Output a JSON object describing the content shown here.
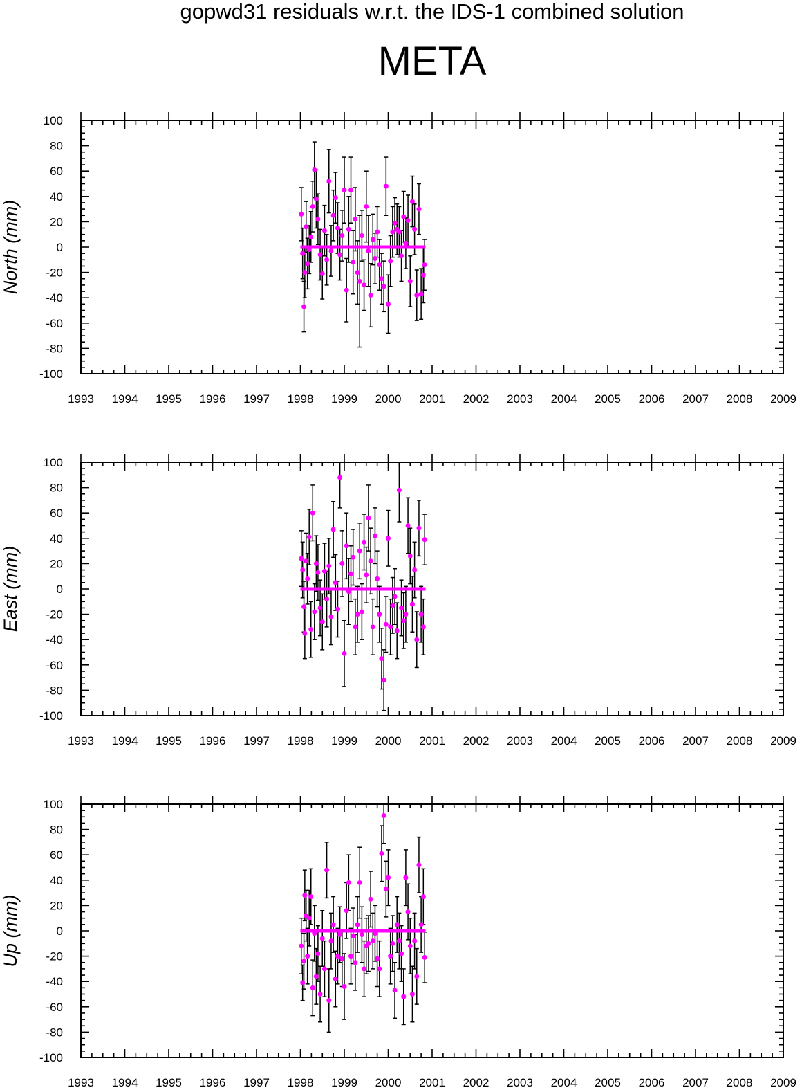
{
  "title": "gopwd31 residuals w.r.t. the IDS-1 combined solution",
  "subtitle": "META",
  "colors": {
    "marker": "#ff00ff",
    "errorbar": "#000000",
    "zero_line": "#ff00ff",
    "axis": "#000000"
  },
  "chart_data": [
    {
      "type": "scatter",
      "ylabel": "North (mm)",
      "xlim": [
        1993,
        2009
      ],
      "ylim": [
        -100,
        100
      ],
      "x_ticks": [
        "1993",
        "1994",
        "1995",
        "1996",
        "1997",
        "1998",
        "1999",
        "2000",
        "2001",
        "2002",
        "2003",
        "2004",
        "2005",
        "2006",
        "2007",
        "2008",
        "2009"
      ],
      "y_ticks": [
        "100",
        "80",
        "60",
        "40",
        "20",
        "0",
        "-20",
        "-40",
        "-60",
        "-80",
        "-100"
      ],
      "zero_line": {
        "x": [
          1998.0,
          2000.85
        ],
        "y": 0
      },
      "series": [
        {
          "x": [
            1998.02,
            1998.05,
            1998.08,
            1998.1,
            1998.13,
            1998.16,
            1998.2,
            1998.24,
            1998.28,
            1998.32,
            1998.36,
            1998.4,
            1998.45,
            1998.5,
            1998.55,
            1998.6,
            1998.65,
            1998.7,
            1998.75,
            1998.8,
            1998.85,
            1998.9,
            1998.95,
            1999.0,
            1999.05,
            1999.1,
            1999.15,
            1999.2,
            1999.25,
            1999.3,
            1999.35,
            1999.4,
            1999.45,
            1999.5,
            1999.55,
            1999.6,
            1999.65,
            1999.7,
            1999.75,
            1999.8,
            1999.85,
            1999.9,
            1999.95,
            2000.0,
            2000.05,
            2000.1,
            2000.15,
            2000.2,
            2000.25,
            2000.3,
            2000.35,
            2000.4,
            2000.45,
            2000.5,
            2000.55,
            2000.6,
            2000.65,
            2000.7,
            2000.75,
            2000.8,
            2000.83
          ],
          "y": [
            26,
            -5,
            -47,
            -20,
            16,
            -13,
            -2,
            8,
            32,
            61,
            38,
            22,
            -6,
            -21,
            13,
            -10,
            52,
            -3,
            25,
            39,
            15,
            -6,
            9,
            45,
            -34,
            14,
            45,
            -12,
            22,
            -20,
            -27,
            9,
            -30,
            32,
            -3,
            -38,
            6,
            -9,
            12,
            -14,
            -25,
            -31,
            48,
            -45,
            -11,
            12,
            19,
            14,
            12,
            -7,
            24,
            3,
            21,
            -27,
            36,
            14,
            -38,
            30,
            -37,
            -22,
            -14
          ],
          "err": [
            21,
            20,
            20,
            20,
            20,
            20,
            19,
            20,
            20,
            22,
            23,
            20,
            20,
            20,
            20,
            20,
            25,
            20,
            20,
            20,
            20,
            20,
            20,
            26,
            25,
            26,
            26,
            25,
            25,
            25,
            52,
            20,
            20,
            28,
            28,
            25,
            20,
            20,
            20,
            20,
            20,
            20,
            23,
            23,
            20,
            20,
            20,
            20,
            20,
            20,
            20,
            20,
            20,
            20,
            20,
            20,
            20,
            20,
            20,
            22,
            20
          ]
        }
      ]
    },
    {
      "type": "scatter",
      "ylabel": "East (mm)",
      "xlim": [
        1993,
        2009
      ],
      "ylim": [
        -100,
        100
      ],
      "x_ticks": [
        "1993",
        "1994",
        "1995",
        "1996",
        "1997",
        "1998",
        "1999",
        "2000",
        "2001",
        "2002",
        "2003",
        "2004",
        "2005",
        "2006",
        "2007",
        "2008",
        "2009"
      ],
      "y_ticks": [
        "100",
        "80",
        "60",
        "40",
        "20",
        "0",
        "-20",
        "-40",
        "-60",
        "-80",
        "-100"
      ],
      "zero_line": {
        "x": [
          1998.0,
          2000.85
        ],
        "y": 0
      },
      "series": [
        {
          "x": [
            1998.02,
            1998.05,
            1998.08,
            1998.1,
            1998.13,
            1998.16,
            1998.2,
            1998.24,
            1998.28,
            1998.32,
            1998.36,
            1998.4,
            1998.45,
            1998.5,
            1998.55,
            1998.6,
            1998.65,
            1998.7,
            1998.75,
            1998.8,
            1998.85,
            1998.9,
            1998.95,
            1999.0,
            1999.05,
            1999.1,
            1999.15,
            1999.2,
            1999.25,
            1999.3,
            1999.35,
            1999.4,
            1999.45,
            1999.5,
            1999.55,
            1999.6,
            1999.65,
            1999.7,
            1999.75,
            1999.8,
            1999.85,
            1999.9,
            1999.95,
            2000.0,
            2000.05,
            2000.1,
            2000.15,
            2000.2,
            2000.25,
            2000.3,
            2000.35,
            2000.4,
            2000.45,
            2000.5,
            2000.55,
            2000.6,
            2000.65,
            2000.7,
            2000.75,
            2000.8,
            2000.83
          ],
          "y": [
            24,
            15,
            -14,
            -35,
            22,
            8,
            41,
            -32,
            60,
            -18,
            20,
            13,
            -15,
            -26,
            14,
            -8,
            18,
            -22,
            47,
            5,
            -16,
            88,
            20,
            -51,
            34,
            -2,
            12,
            25,
            -30,
            -20,
            30,
            -18,
            37,
            11,
            56,
            22,
            -30,
            42,
            8,
            -20,
            -55,
            -72,
            -28,
            40,
            -30,
            -13,
            -6,
            -33,
            78,
            -15,
            -25,
            -20,
            50,
            26,
            -12,
            15,
            -40,
            48,
            -20,
            -30,
            39
          ],
          "err": [
            22,
            22,
            20,
            20,
            22,
            20,
            22,
            22,
            22,
            22,
            22,
            22,
            22,
            22,
            22,
            22,
            22,
            22,
            22,
            22,
            22,
            24,
            26,
            26,
            26,
            26,
            22,
            22,
            22,
            22,
            22,
            22,
            22,
            22,
            26,
            26,
            22,
            22,
            22,
            22,
            24,
            24,
            22,
            22,
            22,
            22,
            22,
            22,
            25,
            22,
            22,
            22,
            22,
            22,
            22,
            22,
            22,
            22,
            22,
            22,
            20
          ]
        }
      ]
    },
    {
      "type": "scatter",
      "ylabel": "Up (mm)",
      "xlim": [
        1993,
        2009
      ],
      "ylim": [
        -100,
        100
      ],
      "x_ticks": [
        "1993",
        "1994",
        "1995",
        "1996",
        "1997",
        "1998",
        "1999",
        "2000",
        "2001",
        "2002",
        "2003",
        "2004",
        "2005",
        "2006",
        "2007",
        "2008",
        "2009"
      ],
      "y_ticks": [
        "100",
        "80",
        "60",
        "40",
        "20",
        "0",
        "-20",
        "-40",
        "-60",
        "-80",
        "-100"
      ],
      "zero_line": {
        "x": [
          1998.0,
          2000.85
        ],
        "y": 0
      },
      "series": [
        {
          "x": [
            1998.02,
            1998.05,
            1998.08,
            1998.1,
            1998.13,
            1998.16,
            1998.2,
            1998.24,
            1998.28,
            1998.32,
            1998.36,
            1998.4,
            1998.45,
            1998.5,
            1998.55,
            1998.6,
            1998.65,
            1998.7,
            1998.75,
            1998.8,
            1998.85,
            1998.9,
            1998.95,
            1999.0,
            1999.05,
            1999.1,
            1999.15,
            1999.2,
            1999.25,
            1999.3,
            1999.35,
            1999.4,
            1999.45,
            1999.5,
            1999.55,
            1999.6,
            1999.65,
            1999.7,
            1999.75,
            1999.8,
            1999.85,
            1999.9,
            1999.95,
            2000.0,
            2000.05,
            2000.1,
            2000.15,
            2000.2,
            2000.25,
            2000.3,
            2000.35,
            2000.4,
            2000.45,
            2000.5,
            2000.55,
            2000.6,
            2000.65,
            2000.7,
            2000.75,
            2000.8,
            2000.83
          ],
          "y": [
            -12,
            -41,
            -24,
            28,
            12,
            -20,
            10,
            27,
            -45,
            -2,
            -36,
            -18,
            -50,
            -6,
            -30,
            48,
            -55,
            -8,
            5,
            -38,
            -20,
            -3,
            -22,
            -44,
            16,
            38,
            -20,
            -4,
            -25,
            5,
            38,
            -3,
            -30,
            -12,
            -10,
            25,
            -8,
            -2,
            -22,
            -30,
            61,
            91,
            33,
            42,
            -20,
            -10,
            -47,
            5,
            -8,
            -18,
            -52,
            42,
            15,
            -12,
            -50,
            -8,
            -36,
            52,
            5,
            27,
            -21
          ],
          "err": [
            22,
            14,
            22,
            20,
            20,
            22,
            22,
            22,
            22,
            22,
            22,
            22,
            22,
            22,
            22,
            22,
            25,
            22,
            22,
            22,
            22,
            22,
            22,
            26,
            22,
            22,
            22,
            22,
            22,
            22,
            28,
            22,
            22,
            22,
            22,
            22,
            22,
            22,
            22,
            22,
            22,
            22,
            22,
            22,
            22,
            22,
            22,
            22,
            22,
            22,
            22,
            22,
            22,
            22,
            22,
            22,
            22,
            22,
            22,
            22,
            20
          ]
        }
      ]
    }
  ]
}
